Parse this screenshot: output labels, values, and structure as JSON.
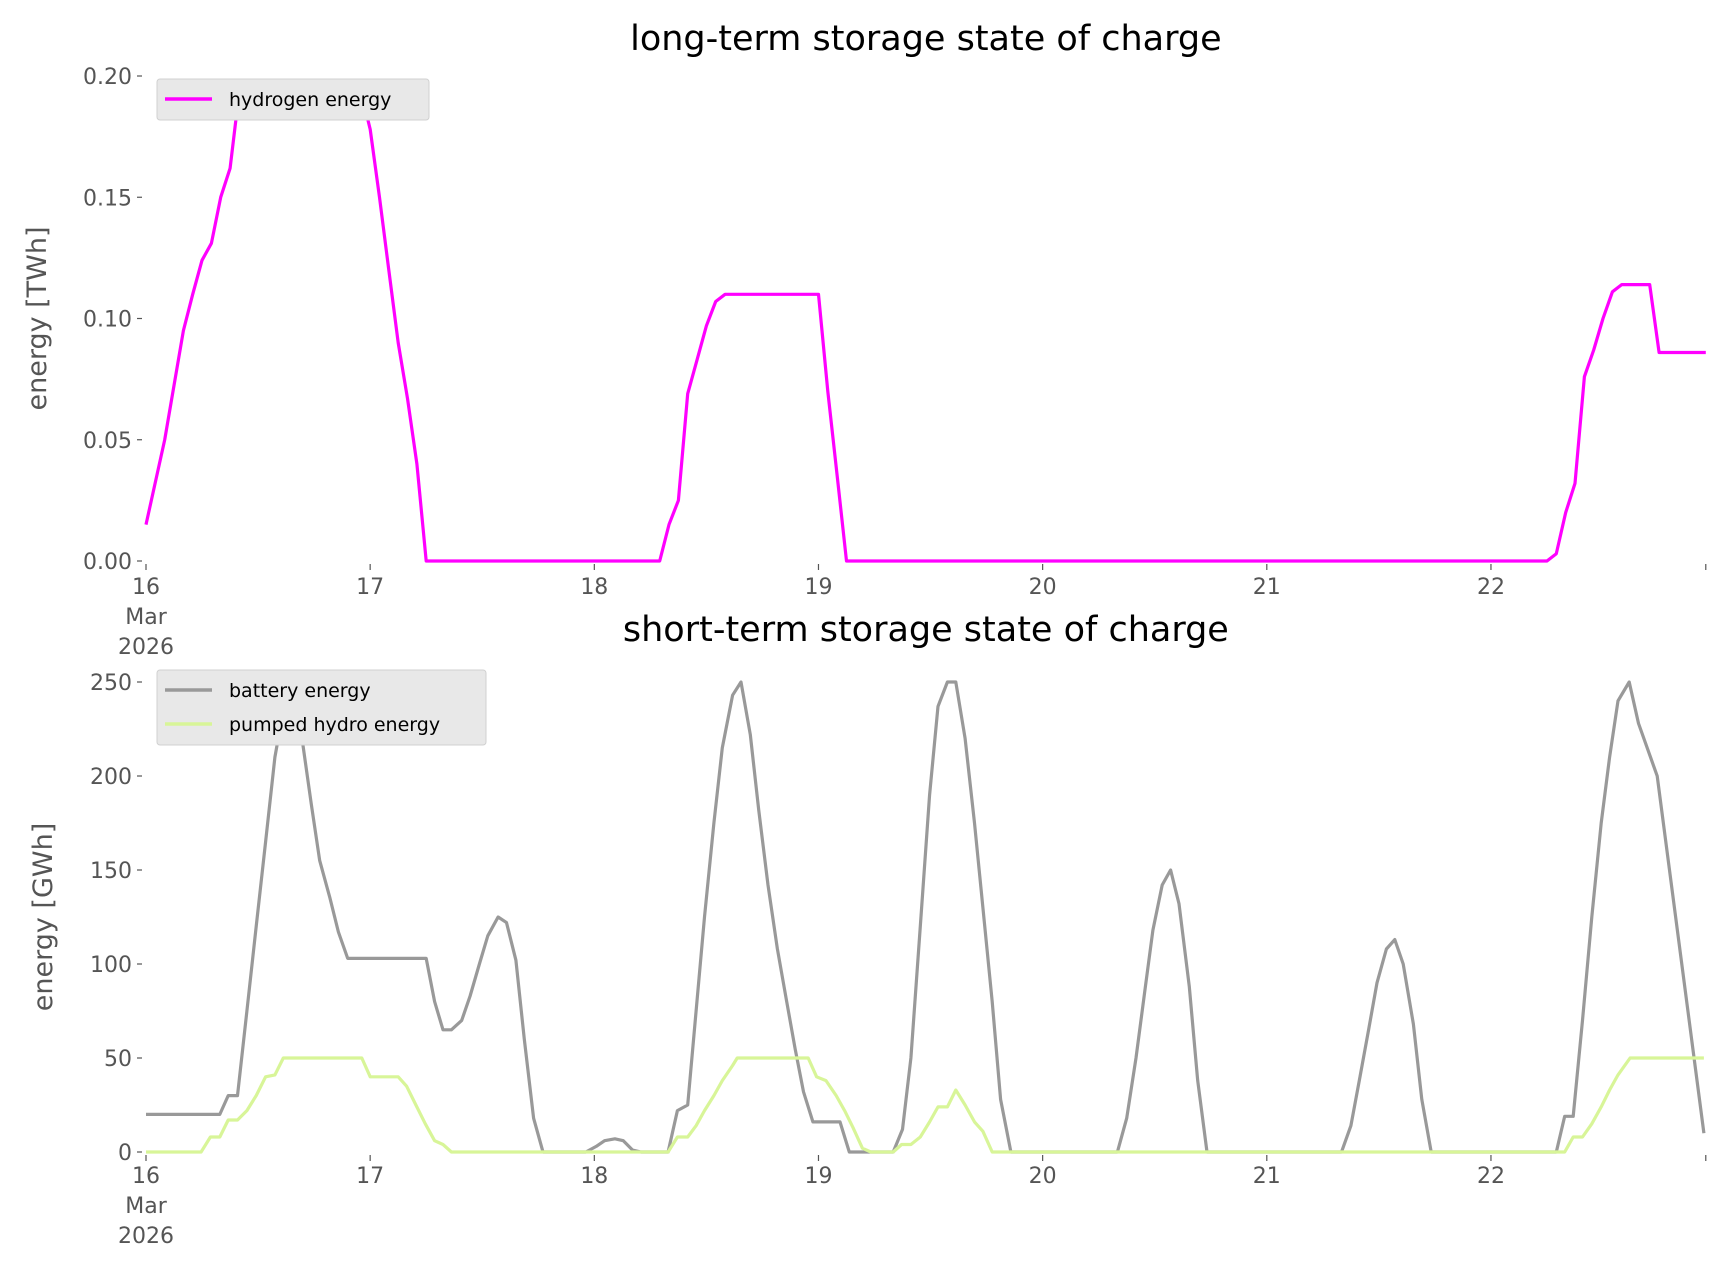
{
  "chart_data": [
    {
      "type": "line",
      "title": "long-term storage state of charge",
      "xlabel": "",
      "ylabel": "energy [TWh]",
      "x_unit": "hours since 16 Mar 2026 00:00",
      "xlim": [
        0,
        167
      ],
      "ylim": [
        0,
        0.2
      ],
      "yticks": [
        "0.00",
        "0.05",
        "0.10",
        "0.15",
        "0.20"
      ],
      "ytick_values": [
        0,
        0.05,
        0.1,
        0.15,
        0.2
      ],
      "xticks": [
        "16",
        "17",
        "18",
        "19",
        "20",
        "21",
        "22"
      ],
      "xtick_sub": [
        "Mar",
        "2026"
      ],
      "legend_position": "top-left",
      "grid": false,
      "series": [
        {
          "name": "hydrogen energy",
          "color": "#ff00ff",
          "points": [
            [
              0,
              0.015
            ],
            [
              2,
              0.05
            ],
            [
              4,
              0.095
            ],
            [
              5,
              0.11
            ],
            [
              6,
              0.124
            ],
            [
              7,
              0.131
            ],
            [
              8,
              0.15
            ],
            [
              9,
              0.162
            ],
            [
              10,
              0.194
            ],
            [
              23,
              0.194
            ],
            [
              24,
              0.178
            ],
            [
              25,
              0.15
            ],
            [
              26,
              0.12
            ],
            [
              27,
              0.09
            ],
            [
              28,
              0.067
            ],
            [
              29,
              0.04
            ],
            [
              30,
              0
            ],
            [
              55,
              0
            ],
            [
              56,
              0.015
            ],
            [
              57,
              0.025
            ],
            [
              58,
              0.069
            ],
            [
              59,
              0.083
            ],
            [
              60,
              0.097
            ],
            [
              61,
              0.107
            ],
            [
              62,
              0.11
            ],
            [
              72,
              0.11
            ],
            [
              73,
              0.07
            ],
            [
              74,
              0.035
            ],
            [
              75,
              0
            ],
            [
              150,
              0
            ],
            [
              151,
              0.003
            ],
            [
              152,
              0.02
            ],
            [
              153,
              0.032
            ],
            [
              154,
              0.076
            ],
            [
              155,
              0.087
            ],
            [
              156,
              0.1
            ],
            [
              157,
              0.111
            ],
            [
              158,
              0.114
            ],
            [
              161,
              0.114
            ],
            [
              162,
              0.086
            ],
            [
              167,
              0.086
            ]
          ]
        }
      ]
    },
    {
      "type": "line",
      "title": "short-term storage state of charge",
      "xlabel": "",
      "ylabel": "energy [GWh]",
      "x_unit": "hours since 16 Mar 2026 00:00",
      "xlim": [
        0,
        167
      ],
      "ylim": [
        0,
        250
      ],
      "yticks": [
        "0",
        "50",
        "100",
        "150",
        "200",
        "250"
      ],
      "ytick_values": [
        0,
        50,
        100,
        150,
        200,
        250
      ],
      "xticks": [
        "16",
        "17",
        "18",
        "19",
        "20",
        "21",
        "22"
      ],
      "xtick_sub": [
        "Mar",
        "2026"
      ],
      "legend_position": "top-left",
      "grid": false,
      "series": [
        {
          "name": "battery energy",
          "color": "#999999",
          "points": [
            [
              0,
              20
            ],
            [
              7.9,
              20
            ],
            [
              8.8,
              30
            ],
            [
              9.8,
              30
            ],
            [
              10.8,
              75
            ],
            [
              11.8,
              120
            ],
            [
              12.8,
              165
            ],
            [
              13.8,
              210
            ],
            [
              14.7,
              235
            ],
            [
              15.7,
              250
            ],
            [
              16.7,
              220
            ],
            [
              17.7,
              185
            ],
            [
              18.6,
              155
            ],
            [
              19.7,
              135
            ],
            [
              20.6,
              117
            ],
            [
              21.6,
              103
            ],
            [
              30,
              103
            ],
            [
              30.9,
              80
            ],
            [
              31.8,
              65
            ],
            [
              32.7,
              65
            ],
            [
              33.8,
              70
            ],
            [
              34.7,
              83
            ],
            [
              35.7,
              100
            ],
            [
              36.6,
              115
            ],
            [
              37.7,
              125
            ],
            [
              38.6,
              122
            ],
            [
              39.6,
              102
            ],
            [
              40.5,
              60
            ],
            [
              41.5,
              18
            ],
            [
              42.5,
              0
            ],
            [
              47.1,
              0
            ],
            [
              48.2,
              3
            ],
            [
              49.1,
              6
            ],
            [
              50.2,
              7
            ],
            [
              51.1,
              6
            ],
            [
              52.1,
              1
            ],
            [
              53,
              0
            ],
            [
              55.9,
              0
            ],
            [
              56.9,
              22
            ],
            [
              58,
              25
            ],
            [
              58.9,
              75
            ],
            [
              59.8,
              125
            ],
            [
              60.8,
              175
            ],
            [
              61.7,
              215
            ],
            [
              62.8,
              243
            ],
            [
              63.7,
              250
            ],
            [
              64.7,
              222
            ],
            [
              65.6,
              182
            ],
            [
              66.6,
              142
            ],
            [
              67.6,
              108
            ],
            [
              68.6,
              80
            ],
            [
              69.5,
              55
            ],
            [
              70.4,
              32
            ],
            [
              71.4,
              16
            ],
            [
              74.3,
              16
            ],
            [
              75.3,
              0
            ],
            [
              80,
              0
            ],
            [
              81,
              12
            ],
            [
              81.9,
              50
            ],
            [
              82.9,
              120
            ],
            [
              83.9,
              190
            ],
            [
              84.8,
              237
            ],
            [
              85.8,
              250
            ],
            [
              86.7,
              250
            ],
            [
              87.7,
              220
            ],
            [
              88.7,
              175
            ],
            [
              89.6,
              130
            ],
            [
              90.6,
              80
            ],
            [
              91.5,
              28
            ],
            [
              92.6,
              0
            ],
            [
              104,
              0
            ],
            [
              105,
              18
            ],
            [
              106,
              50
            ],
            [
              107,
              88
            ],
            [
              107.8,
              118
            ],
            [
              108.8,
              142
            ],
            [
              109.7,
              150
            ],
            [
              110.6,
              132
            ],
            [
              111.7,
              88
            ],
            [
              112.6,
              38
            ],
            [
              113.6,
              0
            ],
            [
              128,
              0
            ],
            [
              129,
              14
            ],
            [
              129.9,
              38
            ],
            [
              130.9,
              65
            ],
            [
              131.8,
              90
            ],
            [
              132.8,
              108
            ],
            [
              133.7,
              113
            ],
            [
              134.6,
              100
            ],
            [
              135.7,
              68
            ],
            [
              136.6,
              28
            ],
            [
              137.6,
              0
            ],
            [
              151,
              0
            ],
            [
              151.9,
              19
            ],
            [
              152.8,
              19
            ],
            [
              153.8,
              70
            ],
            [
              154.8,
              125
            ],
            [
              155.8,
              175
            ],
            [
              156.7,
              210
            ],
            [
              157.6,
              240
            ],
            [
              158.8,
              250
            ],
            [
              159.8,
              228
            ],
            [
              161.8,
              200
            ],
            [
              166.8,
              10
            ]
          ]
        },
        {
          "name": "pumped hydro energy",
          "color": "#d8f598",
          "points": [
            [
              0,
              0
            ],
            [
              5.9,
              0
            ],
            [
              6.9,
              8
            ],
            [
              7.9,
              8
            ],
            [
              8.8,
              17
            ],
            [
              9.8,
              17
            ],
            [
              10.8,
              22
            ],
            [
              11.8,
              30
            ],
            [
              12.8,
              40
            ],
            [
              13.8,
              41
            ],
            [
              14.7,
              50
            ],
            [
              23.1,
              50
            ],
            [
              24,
              40
            ],
            [
              27,
              40
            ],
            [
              27.9,
              35
            ],
            [
              28.9,
              25
            ],
            [
              29.9,
              15
            ],
            [
              30.9,
              6
            ],
            [
              31.8,
              4
            ],
            [
              32.7,
              0
            ],
            [
              55.9,
              0
            ],
            [
              56.9,
              8
            ],
            [
              58,
              8
            ],
            [
              58.9,
              14
            ],
            [
              59.8,
              22
            ],
            [
              60.8,
              30
            ],
            [
              61.7,
              38
            ],
            [
              62.8,
              46
            ],
            [
              63.3,
              50
            ],
            [
              70.9,
              50
            ],
            [
              71.8,
              40
            ],
            [
              72.8,
              38
            ],
            [
              73.9,
              30
            ],
            [
              74.8,
              22
            ],
            [
              75.7,
              13
            ],
            [
              76.7,
              2
            ],
            [
              77.6,
              0
            ],
            [
              80,
              0
            ],
            [
              80.9,
              4
            ],
            [
              81.9,
              4
            ],
            [
              82.9,
              8
            ],
            [
              83.9,
              16
            ],
            [
              84.8,
              24
            ],
            [
              85.8,
              24
            ],
            [
              86.7,
              33
            ],
            [
              87.7,
              25
            ],
            [
              88.7,
              16
            ],
            [
              89.6,
              11
            ],
            [
              90.6,
              0
            ],
            [
              151.9,
              0
            ],
            [
              152.8,
              8
            ],
            [
              153.8,
              8
            ],
            [
              154.8,
              15
            ],
            [
              155.8,
              24
            ],
            [
              156.7,
              33
            ],
            [
              157.6,
              41
            ],
            [
              158.9,
              50
            ],
            [
              166.8,
              50
            ]
          ]
        }
      ]
    }
  ]
}
